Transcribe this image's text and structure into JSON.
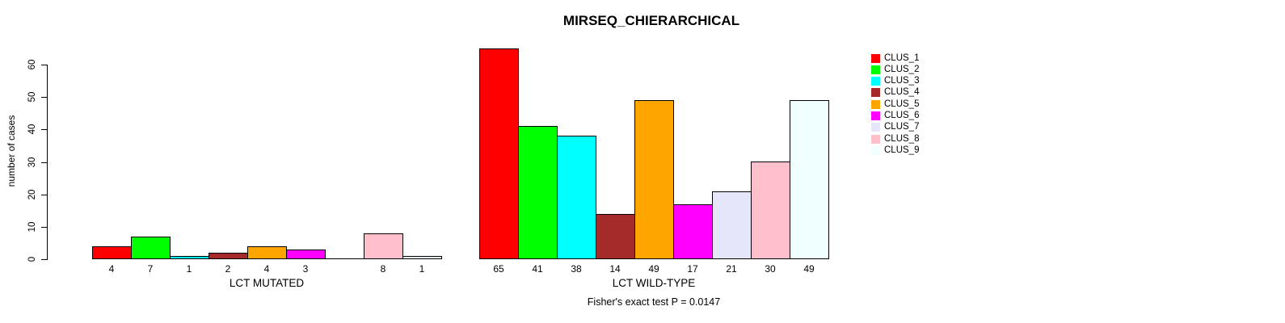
{
  "chart_data": {
    "type": "bar",
    "title": "MIRSEQ_CHIERARCHICAL",
    "ylabel": "number of cases",
    "ylim": [
      0,
      67
    ],
    "yticks": [
      0,
      10,
      20,
      30,
      40,
      50,
      60
    ],
    "grid": false,
    "legend_position": "right",
    "clusters": [
      "CLUS_1",
      "CLUS_2",
      "CLUS_3",
      "CLUS_4",
      "CLUS_5",
      "CLUS_6",
      "CLUS_7",
      "CLUS_8",
      "CLUS_9"
    ],
    "colors": [
      "#FF0000",
      "#00FF00",
      "#00FFFF",
      "#A52A2A",
      "#FFA500",
      "#FF00FF",
      "#E6E6FA",
      "#FFC0CB",
      "#F0FFFF"
    ],
    "groups": [
      {
        "label": "LCT MUTATED",
        "values": [
          4,
          7,
          1,
          2,
          4,
          3,
          0,
          8,
          1
        ]
      },
      {
        "label": "LCT WILD-TYPE",
        "values": [
          65,
          41,
          38,
          14,
          49,
          17,
          21,
          30,
          49
        ]
      }
    ],
    "annotation": "Fisher's exact test P = 0.0147"
  }
}
